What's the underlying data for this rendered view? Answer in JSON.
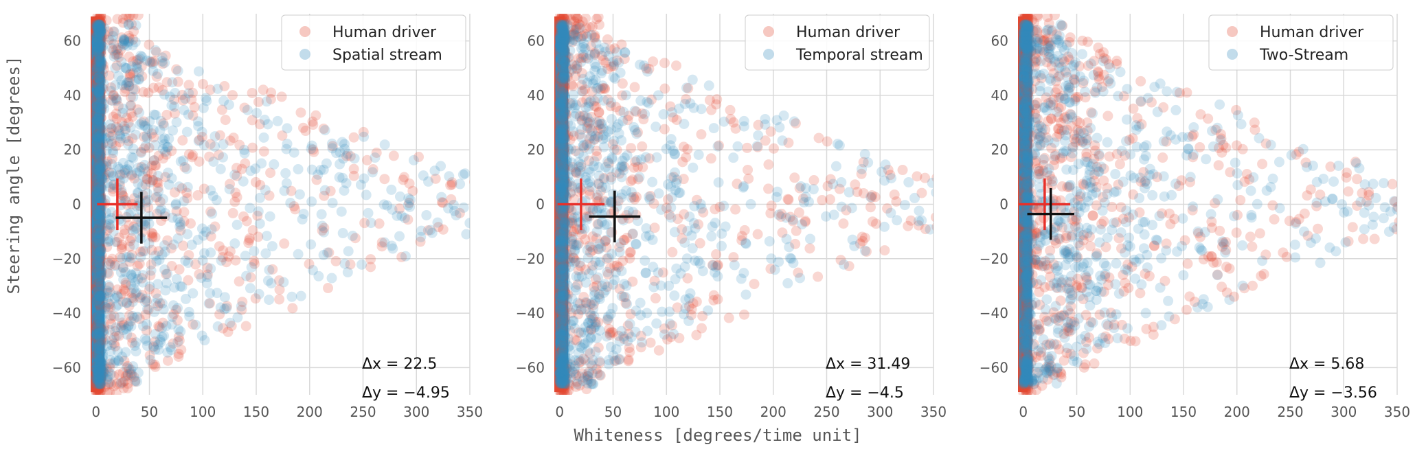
{
  "figure": {
    "xlabel": "Whiteness [degrees/time unit]",
    "ylabel": "Steering angle [degrees]"
  },
  "colors": {
    "human": "#e24a33",
    "model": "#348abd",
    "human_marker": "#e8302a",
    "model_marker": "#111111",
    "grid": "#d9d9d9",
    "tick_text": "#555555"
  },
  "chart_data": [
    {
      "type": "scatter",
      "title": "",
      "xlabel": "",
      "ylabel": "Steering angle [degrees]",
      "xlim": [
        -5,
        350
      ],
      "ylim": [
        -70,
        70
      ],
      "xticks": [
        0,
        50,
        100,
        150,
        200,
        250,
        300,
        350
      ],
      "yticks": [
        -60,
        -40,
        -20,
        0,
        20,
        40,
        60
      ],
      "grid": true,
      "legend_position": "top-right",
      "series": [
        {
          "name": "Human driver",
          "color": "#e24a33",
          "density": "dense near x=0, spread to x≈350"
        },
        {
          "name": "Spatial stream",
          "color": "#348abd",
          "density": "dense near x=0, spread to x≈350"
        }
      ],
      "human_mean": {
        "x": 20,
        "y": 0,
        "x_err": 19,
        "y_err": 9.5
      },
      "model_mean": {
        "x": 42.5,
        "y": -4.95,
        "x_err": 24,
        "y_err": 9.5
      },
      "annotation": {
        "dx": "Δx = 22.5",
        "dy": "Δy = −4.95"
      }
    },
    {
      "type": "scatter",
      "title": "",
      "xlabel": "Whiteness [degrees/time unit]",
      "ylabel": "",
      "xlim": [
        -5,
        350
      ],
      "ylim": [
        -70,
        70
      ],
      "xticks": [
        0,
        50,
        100,
        150,
        200,
        250,
        300,
        350
      ],
      "yticks": [
        -60,
        -40,
        -20,
        0,
        20,
        40,
        60
      ],
      "grid": true,
      "legend_position": "top-right",
      "series": [
        {
          "name": "Human driver",
          "color": "#e24a33",
          "density": "dense near x=0, spread to x≈350"
        },
        {
          "name": "Temporal stream",
          "color": "#348abd",
          "density": "dense near x=0, spread to x≈350"
        }
      ],
      "human_mean": {
        "x": 20,
        "y": 0,
        "x_err": 22,
        "y_err": 9.5
      },
      "model_mean": {
        "x": 51.5,
        "y": -4.5,
        "x_err": 24,
        "y_err": 9.5
      },
      "annotation": {
        "dx": "Δx = 31.49",
        "dy": "Δy = −4.5"
      }
    },
    {
      "type": "scatter",
      "title": "",
      "xlabel": "",
      "ylabel": "",
      "xlim": [
        -5,
        350
      ],
      "ylim": [
        -70,
        70
      ],
      "xticks": [
        0,
        50,
        100,
        150,
        200,
        250,
        300,
        350
      ],
      "yticks": [
        -60,
        -40,
        -20,
        0,
        20,
        40,
        60
      ],
      "grid": true,
      "legend_position": "top-right",
      "series": [
        {
          "name": "Human driver",
          "color": "#e24a33",
          "density": "dense near x=0, spread to x≈350"
        },
        {
          "name": "Two-Stream",
          "color": "#348abd",
          "density": "dense near x=0, spread to x≈350"
        }
      ],
      "human_mean": {
        "x": 20,
        "y": 0,
        "x_err": 24,
        "y_err": 9.5
      },
      "model_mean": {
        "x": 25.7,
        "y": -3.56,
        "x_err": 22,
        "y_err": 9.5
      },
      "annotation": {
        "dx": "Δx = 5.68",
        "dy": "Δy = −3.56"
      }
    }
  ]
}
